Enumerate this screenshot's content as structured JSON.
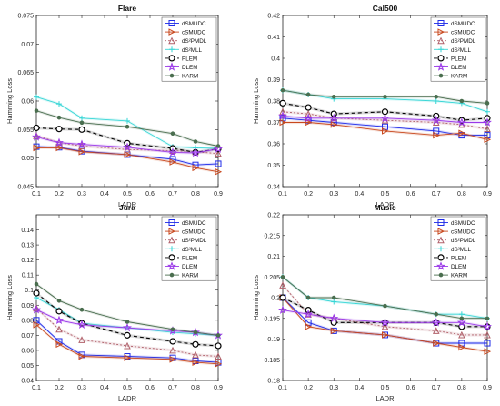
{
  "chart_data": [
    {
      "type": "line",
      "title": "Flare",
      "xlabel": "LADR",
      "ylabel": "Hamming Loss",
      "xlim": [
        0.1,
        0.9
      ],
      "ylim": [
        0.045,
        0.075
      ],
      "xticks": [
        "0.1",
        "0.2",
        "0.3",
        "0.4",
        "0.5",
        "0.6",
        "0.7",
        "0.8",
        "0.9"
      ],
      "yticks": [
        "0.045",
        "0.05",
        "0.055",
        "0.06",
        "0.065",
        "0.07",
        "0.075"
      ],
      "legend_position": "top-right",
      "x": [
        0.1,
        0.2,
        0.3,
        0.5,
        0.7,
        0.8,
        0.9
      ],
      "series": [
        {
          "name": "dSMUDC",
          "values": [
            0.052,
            0.0519,
            0.0512,
            0.0506,
            0.0498,
            0.0488,
            0.049
          ]
        },
        {
          "name": "cSMUDC",
          "values": [
            0.0518,
            0.0518,
            0.0511,
            0.0506,
            0.0493,
            0.0483,
            0.0476
          ]
        },
        {
          "name": "dS²PMDL",
          "values": [
            0.0539,
            0.0527,
            0.0521,
            0.0515,
            0.0513,
            0.0511,
            0.0508
          ]
        },
        {
          "name": "dS²MLL",
          "values": [
            0.0607,
            0.0595,
            0.057,
            0.0565,
            0.052,
            0.0518,
            0.0517
          ]
        },
        {
          "name": "PLEM",
          "values": [
            0.0553,
            0.0551,
            0.055,
            0.0526,
            0.0517,
            0.051,
            0.0516
          ]
        },
        {
          "name": "DLEM",
          "values": [
            0.0537,
            0.0527,
            0.0524,
            0.0519,
            0.051,
            0.0509,
            0.0516
          ]
        },
        {
          "name": "KARM",
          "values": [
            0.0583,
            0.0571,
            0.0562,
            0.0555,
            0.0543,
            0.0529,
            0.0521
          ]
        }
      ]
    },
    {
      "type": "line",
      "title": "Cal500",
      "xlabel": "LADR",
      "ylabel": "Hamming Loss",
      "xlim": [
        0.1,
        0.9
      ],
      "ylim": [
        0.34,
        0.42
      ],
      "xticks": [
        "0.1",
        "0.2",
        "0.3",
        "0.4",
        "0.5",
        "0.6",
        "0.7",
        "0.8",
        "0.9"
      ],
      "yticks": [
        "0.34",
        "0.35",
        "0.36",
        "0.37",
        "0.38",
        "0.39",
        "0.4",
        "0.41",
        "0.42"
      ],
      "legend_position": "top-right",
      "x": [
        0.1,
        0.2,
        0.3,
        0.5,
        0.7,
        0.8,
        0.9
      ],
      "series": [
        {
          "name": "dSMUDC",
          "values": [
            0.372,
            0.371,
            0.37,
            0.368,
            0.366,
            0.364,
            0.364
          ]
        },
        {
          "name": "cSMUDC",
          "values": [
            0.37,
            0.37,
            0.369,
            0.366,
            0.364,
            0.365,
            0.362
          ]
        },
        {
          "name": "dS²PMDL",
          "values": [
            0.375,
            0.374,
            0.372,
            0.371,
            0.37,
            0.369,
            0.367
          ]
        },
        {
          "name": "dS²MLL",
          "values": [
            0.385,
            0.383,
            0.381,
            0.381,
            0.38,
            0.379,
            0.375
          ]
        },
        {
          "name": "PLEM",
          "values": [
            0.379,
            0.377,
            0.374,
            0.375,
            0.373,
            0.371,
            0.372
          ]
        },
        {
          "name": "DLEM",
          "values": [
            0.373,
            0.372,
            0.372,
            0.372,
            0.371,
            0.37,
            0.37
          ]
        },
        {
          "name": "KARM",
          "values": [
            0.385,
            0.383,
            0.382,
            0.382,
            0.382,
            0.38,
            0.379
          ]
        }
      ]
    },
    {
      "type": "line",
      "title": "Jura",
      "xlabel": "LADR",
      "ylabel": "Hamming Loss",
      "xlim": [
        0.1,
        0.9
      ],
      "ylim": [
        0.04,
        0.15
      ],
      "xticks": [
        "0.1",
        "0.2",
        "0.3",
        "0.4",
        "0.5",
        "0.6",
        "0.7",
        "0.8",
        "0.9"
      ],
      "yticks": [
        "0.04",
        "0.05",
        "0.06",
        "0.07",
        "0.08",
        "0.09",
        "0.1",
        "0.11",
        "0.12",
        "0.13",
        "0.14"
      ],
      "legend_position": "top-right",
      "x": [
        0.1,
        0.2,
        0.3,
        0.5,
        0.7,
        0.8,
        0.9
      ],
      "series": [
        {
          "name": "dSMUDC",
          "values": [
            0.08,
            0.066,
            0.057,
            0.056,
            0.055,
            0.053,
            0.052
          ]
        },
        {
          "name": "cSMUDC",
          "values": [
            0.077,
            0.064,
            0.056,
            0.055,
            0.054,
            0.052,
            0.051
          ]
        },
        {
          "name": "dS²PMDL",
          "values": [
            0.088,
            0.074,
            0.067,
            0.063,
            0.06,
            0.057,
            0.056
          ]
        },
        {
          "name": "dS²MLL",
          "values": [
            0.095,
            0.087,
            0.078,
            0.075,
            0.072,
            0.071,
            0.07
          ]
        },
        {
          "name": "PLEM",
          "values": [
            0.098,
            0.086,
            0.078,
            0.07,
            0.066,
            0.064,
            0.063
          ]
        },
        {
          "name": "DLEM",
          "values": [
            0.087,
            0.08,
            0.077,
            0.075,
            0.073,
            0.072,
            0.07
          ]
        },
        {
          "name": "KARM",
          "values": [
            0.104,
            0.093,
            0.087,
            0.079,
            0.074,
            0.072,
            0.07
          ]
        }
      ]
    },
    {
      "type": "line",
      "title": "Music",
      "xlabel": "LADR",
      "ylabel": "Hamming Loss",
      "xlim": [
        0.1,
        0.9
      ],
      "ylim": [
        0.18,
        0.22
      ],
      "xticks": [
        "0.1",
        "0.2",
        "0.3",
        "0.4",
        "0.5",
        "0.6",
        "0.7",
        "0.8",
        "0.9"
      ],
      "yticks": [
        "0.18",
        "0.185",
        "0.19",
        "0.195",
        "0.2",
        "0.205",
        "0.21",
        "0.215",
        "0.22"
      ],
      "legend_position": "top-right",
      "x": [
        0.1,
        0.2,
        0.3,
        0.5,
        0.7,
        0.8,
        0.9
      ],
      "series": [
        {
          "name": "dSMUDC",
          "values": [
            0.2,
            0.194,
            0.192,
            0.191,
            0.189,
            0.189,
            0.189
          ]
        },
        {
          "name": "cSMUDC",
          "values": [
            0.2,
            0.193,
            0.192,
            0.191,
            0.189,
            0.188,
            0.187
          ]
        },
        {
          "name": "dS²PMDL",
          "values": [
            0.203,
            0.196,
            0.195,
            0.193,
            0.192,
            0.191,
            0.191
          ]
        },
        {
          "name": "dS²MLL",
          "values": [
            0.205,
            0.2,
            0.199,
            0.198,
            0.196,
            0.196,
            0.195
          ]
        },
        {
          "name": "PLEM",
          "values": [
            0.2,
            0.197,
            0.194,
            0.194,
            0.194,
            0.193,
            0.193
          ]
        },
        {
          "name": "DLEM",
          "values": [
            0.197,
            0.196,
            0.195,
            0.194,
            0.194,
            0.194,
            0.193
          ]
        },
        {
          "name": "KARM",
          "values": [
            0.205,
            0.2,
            0.2,
            0.198,
            0.196,
            0.195,
            0.195
          ]
        }
      ]
    }
  ],
  "series_styles": [
    {
      "color": "#1f2be8",
      "marker": "square",
      "dash": ""
    },
    {
      "color": "#c8481e",
      "marker": "triangle-right",
      "dash": ""
    },
    {
      "color": "#b0606a",
      "marker": "triangle-up",
      "dash": "2,2"
    },
    {
      "color": "#38d6d6",
      "marker": "plus",
      "dash": ""
    },
    {
      "color": "#000000",
      "marker": "circle",
      "dash": "4,3"
    },
    {
      "color": "#9a38e8",
      "marker": "star",
      "dash": ""
    },
    {
      "color": "#4a6e4f",
      "marker": "dot",
      "dash": ""
    }
  ]
}
